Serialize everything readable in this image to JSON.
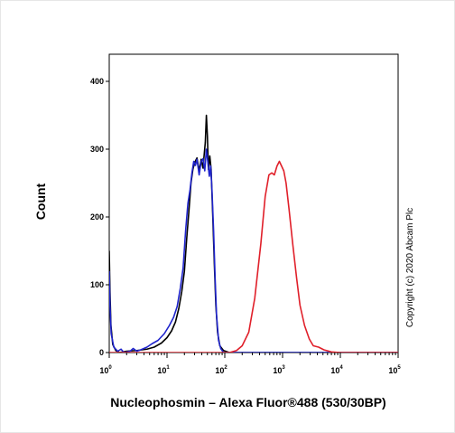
{
  "chart_data": {
    "type": "line",
    "title": "",
    "xlabel": "Nucleophosmin – Alexa Fluor®488 (530/30BP)",
    "ylabel": "Count",
    "x_scale": "log",
    "xlim": [
      1,
      100000
    ],
    "ylim": [
      0,
      440
    ],
    "x_ticks": [
      {
        "base": "10",
        "exp": "0",
        "value": 1
      },
      {
        "base": "10",
        "exp": "1",
        "value": 10
      },
      {
        "base": "10",
        "exp": "2",
        "value": 100
      },
      {
        "base": "10",
        "exp": "3",
        "value": 1000
      },
      {
        "base": "10",
        "exp": "4",
        "value": 10000
      },
      {
        "base": "10",
        "exp": "5",
        "value": 100000
      }
    ],
    "y_ticks": [
      "0",
      "100",
      "200",
      "300",
      "400"
    ],
    "annotation": "Copyright (c) 2020 Abcam Plc",
    "series": [
      {
        "color": "#000000",
        "points": [
          [
            1.0,
            150
          ],
          [
            1.03,
            90
          ],
          [
            1.07,
            40
          ],
          [
            1.15,
            12
          ],
          [
            1.3,
            3
          ],
          [
            1.5,
            0
          ],
          [
            2.0,
            2
          ],
          [
            3.0,
            3
          ],
          [
            4.5,
            5
          ],
          [
            6.0,
            8
          ],
          [
            8.0,
            14
          ],
          [
            10.0,
            22
          ],
          [
            12.0,
            32
          ],
          [
            14.0,
            45
          ],
          [
            16.0,
            65
          ],
          [
            18.0,
            90
          ],
          [
            20.0,
            120
          ],
          [
            22.0,
            170
          ],
          [
            24.0,
            210
          ],
          [
            26.0,
            250
          ],
          [
            28.0,
            270
          ],
          [
            30.0,
            280
          ],
          [
            33.0,
            287
          ],
          [
            36.0,
            268
          ],
          [
            39.0,
            285
          ],
          [
            42.0,
            272
          ],
          [
            44.0,
            292
          ],
          [
            46.0,
            310
          ],
          [
            48.0,
            350
          ],
          [
            50.0,
            320
          ],
          [
            52.0,
            270
          ],
          [
            55.0,
            290
          ],
          [
            58.0,
            270
          ],
          [
            62.0,
            200
          ],
          [
            66.0,
            130
          ],
          [
            70.0,
            70
          ],
          [
            75.0,
            30
          ],
          [
            82.0,
            10
          ],
          [
            95.0,
            3
          ],
          [
            120.0,
            0
          ],
          [
            100000.0,
            0
          ]
        ]
      },
      {
        "color": "#1f24cc",
        "points": [
          [
            1.0,
            120
          ],
          [
            1.03,
            70
          ],
          [
            1.08,
            28
          ],
          [
            1.2,
            8
          ],
          [
            1.4,
            2
          ],
          [
            1.6,
            5
          ],
          [
            1.8,
            0
          ],
          [
            2.3,
            2
          ],
          [
            2.6,
            6
          ],
          [
            3.0,
            2
          ],
          [
            3.5,
            4
          ],
          [
            4.5,
            8
          ],
          [
            5.5,
            13
          ],
          [
            7.0,
            18
          ],
          [
            9.0,
            28
          ],
          [
            11.0,
            40
          ],
          [
            13.0,
            52
          ],
          [
            15.0,
            68
          ],
          [
            17.0,
            95
          ],
          [
            19.0,
            125
          ],
          [
            21.0,
            180
          ],
          [
            23.0,
            220
          ],
          [
            25.0,
            240
          ],
          [
            27.0,
            265
          ],
          [
            29.0,
            282
          ],
          [
            31.0,
            276
          ],
          [
            33.0,
            285
          ],
          [
            36.0,
            262
          ],
          [
            39.0,
            282
          ],
          [
            42.0,
            286
          ],
          [
            45.0,
            268
          ],
          [
            48.0,
            300
          ],
          [
            51.0,
            280
          ],
          [
            54.0,
            260
          ],
          [
            57.0,
            275
          ],
          [
            60.0,
            240
          ],
          [
            64.0,
            180
          ],
          [
            68.0,
            110
          ],
          [
            72.0,
            55
          ],
          [
            78.0,
            18
          ],
          [
            85.0,
            6
          ],
          [
            95.0,
            0
          ],
          [
            100000.0,
            0
          ]
        ]
      },
      {
        "color": "#e0202a",
        "points": [
          [
            1.0,
            0
          ],
          [
            120.0,
            0
          ],
          [
            160.0,
            3
          ],
          [
            200.0,
            10
          ],
          [
            260.0,
            30
          ],
          [
            330.0,
            80
          ],
          [
            420.0,
            160
          ],
          [
            500.0,
            230
          ],
          [
            580.0,
            262
          ],
          [
            650.0,
            265
          ],
          [
            720.0,
            262
          ],
          [
            800.0,
            275
          ],
          [
            880.0,
            282
          ],
          [
            950.0,
            276
          ],
          [
            1050.0,
            268
          ],
          [
            1150.0,
            250
          ],
          [
            1300.0,
            210
          ],
          [
            1500.0,
            160
          ],
          [
            1750.0,
            110
          ],
          [
            2000.0,
            70
          ],
          [
            2400.0,
            40
          ],
          [
            2900.0,
            20
          ],
          [
            3400.0,
            10
          ],
          [
            4200.0,
            8
          ],
          [
            5200.0,
            4
          ],
          [
            7000.0,
            1
          ],
          [
            10000.0,
            0
          ],
          [
            100000.0,
            0
          ]
        ]
      }
    ]
  }
}
